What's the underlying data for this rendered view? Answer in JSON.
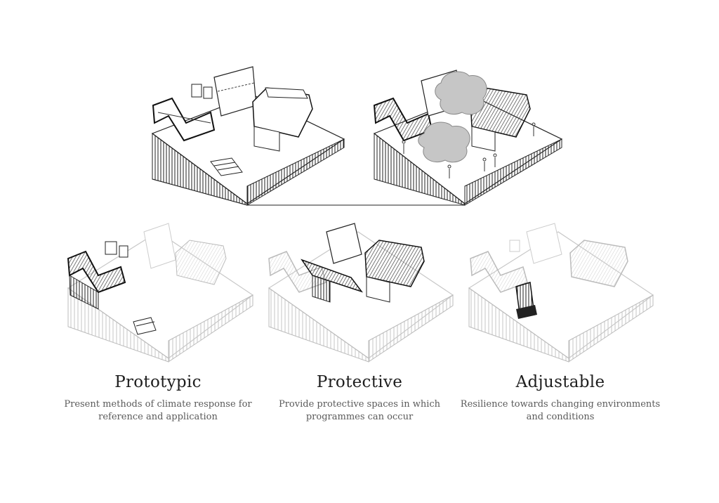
{
  "captions": [
    {
      "title": "Prototypic",
      "body": "Present methods of climate response for reference and application"
    },
    {
      "title": "Protective",
      "body": "Provide protective spaces in which programmes can occur"
    },
    {
      "title": "Adjustable",
      "body": "Resilience towards changing environments and conditions"
    }
  ],
  "colors": {
    "ink": "#1a1a1a",
    "faded": "#c8c8c8",
    "tree": "#c6c6c6",
    "highlight_roof": "#8a8a8a"
  }
}
